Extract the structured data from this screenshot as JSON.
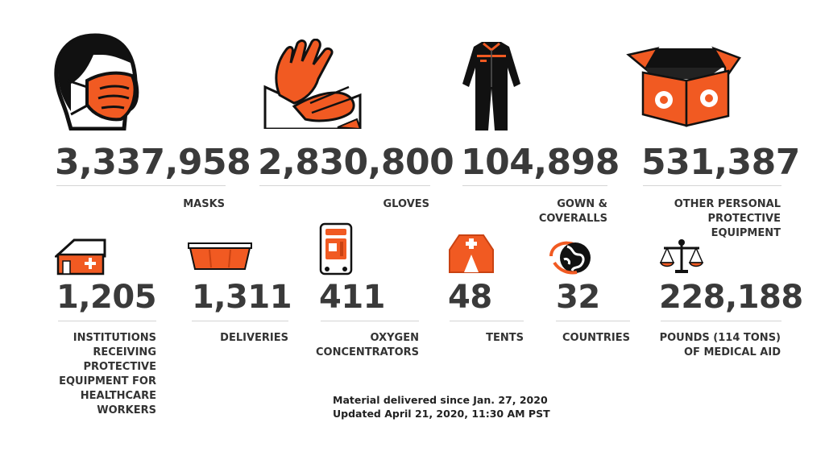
{
  "colors": {
    "accent": "#f15a22",
    "ink": "#1a1a1a",
    "text": "#333333",
    "rule": "#d4d4d4"
  },
  "stats": [
    {
      "id": "masks",
      "icon": "face-mask-icon",
      "value": "3,337,958",
      "label": [
        "MASKS"
      ]
    },
    {
      "id": "gloves",
      "icon": "gloves-icon",
      "value": "2,830,800",
      "label": [
        "GLOVES"
      ]
    },
    {
      "id": "gowns",
      "icon": "coverall-icon",
      "value": "104,898",
      "label": [
        "GOWN &",
        "COVERALLS"
      ]
    },
    {
      "id": "other-ppe",
      "icon": "open-box-icon",
      "value": "531,387",
      "label": [
        "OTHER PERSONAL",
        "PROTECTIVE",
        "EQUIPMENT"
      ]
    },
    {
      "id": "institutions",
      "icon": "hospital-icon",
      "value": "1,205",
      "label": [
        "INSTITUTIONS",
        "RECEIVING",
        "PROTECTIVE",
        "EQUIPMENT FOR",
        "HEALTHCARE",
        "WORKERS"
      ]
    },
    {
      "id": "deliveries",
      "icon": "crate-icon",
      "value": "1,311",
      "label": [
        "DELIVERIES"
      ]
    },
    {
      "id": "oxygen",
      "icon": "oxygen-concentrator-icon",
      "value": "411",
      "label": [
        "OXYGEN",
        "CONCENTRATORS"
      ]
    },
    {
      "id": "tents",
      "icon": "medical-tent-icon",
      "value": "48",
      "label": [
        "TENTS"
      ]
    },
    {
      "id": "countries",
      "icon": "globe-icon",
      "value": "32",
      "label": [
        "COUNTRIES"
      ]
    },
    {
      "id": "pounds",
      "icon": "scale-icon",
      "value": "228,188",
      "label": [
        "POUNDS (114 TONS)",
        "OF MEDICAL AID"
      ]
    }
  ],
  "footer": {
    "line1": "Material delivered since Jan. 27, 2020",
    "line2": "Updated April 21, 2020, 11:30 AM PST"
  }
}
